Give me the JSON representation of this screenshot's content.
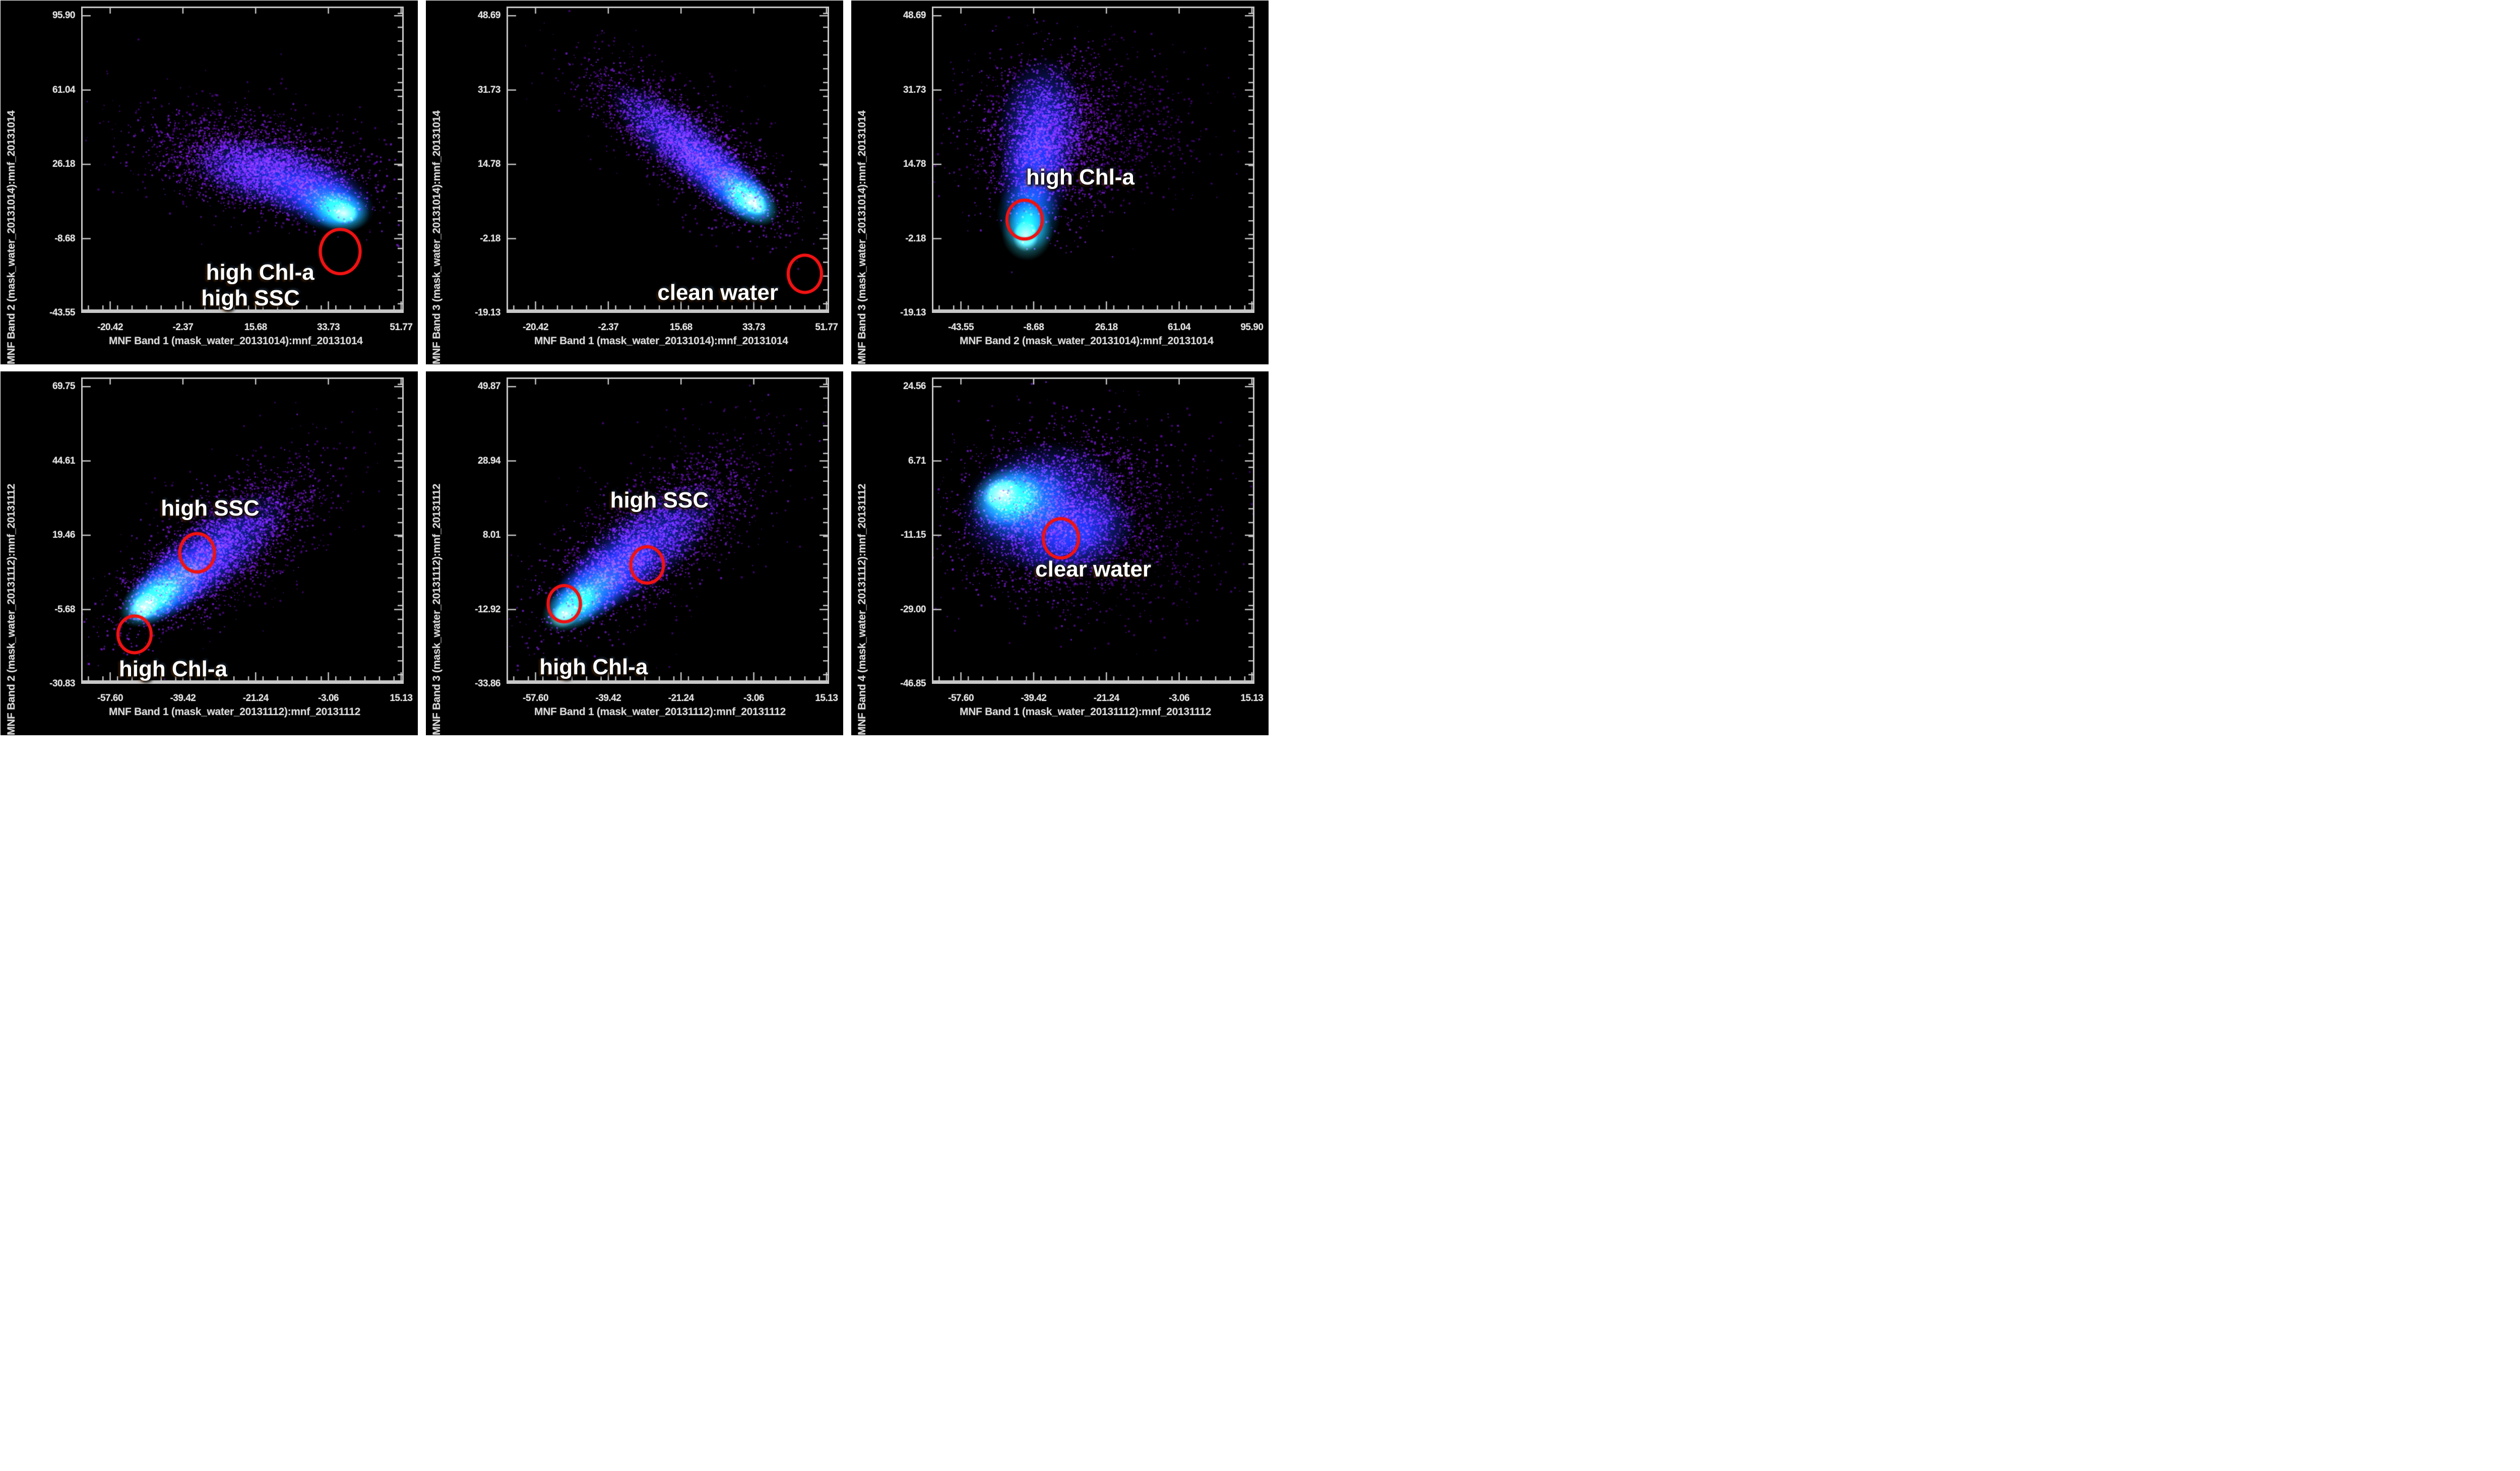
{
  "figure": {
    "description": "Six ENVI MNF-band 2D density scatter plots (2 rows x 3 columns) for water masks of two dates, with red circled regions labeling water types",
    "background": "#ffffff",
    "panel_background": "#000000"
  },
  "colors": {
    "frame": "#c8c8c8",
    "tick_label": "#e2e2e2",
    "axis_title": "#d9d9d9",
    "annotation_text": "#ffffff",
    "highlight_circle": "#ef1212",
    "density_palette": {
      "outer_speckle": "#6e0abe",
      "speckle": "#8c23f5",
      "glow_blue": "#2338ff",
      "glow_mid": "#0091ff",
      "glow_bright": "#37ebff",
      "glow_core": "#b9ffeb"
    }
  },
  "chart_data": [
    {
      "id": "top-left",
      "type": "scatter",
      "style": "2d-density",
      "xlabel": "MNF Band 1 (mask_water_20131014):mnf_20131014",
      "ylabel": "MNF Band 2 (mask_water_20131014):mnf_20131014",
      "x_ticks": [
        "-20.42",
        "-2.37",
        "15.68",
        "33.73",
        "51.77"
      ],
      "y_ticks": [
        "95.90",
        "61.04",
        "26.18",
        "-8.68",
        "-43.55"
      ],
      "x_range": [
        -27.6,
        52.4
      ],
      "y_range": [
        -43.5,
        99.5
      ],
      "grid": false,
      "density_peak": {
        "x": 38,
        "y": 3
      },
      "annotations": [
        {
          "label": "high Chl-a",
          "fx": 0.555,
          "fy": 0.868,
          "x": 17,
          "y": -25
        },
        {
          "label": "high SSC",
          "fx": 0.525,
          "fy": 0.952,
          "x": 14,
          "y": -37
        }
      ],
      "circled_regions": [
        {
          "fx": 0.803,
          "fy": 0.8,
          "r": 0.057,
          "x": 37,
          "y": -15
        }
      ],
      "clusters": [
        {
          "k": "sp",
          "tone": "outer",
          "c": [
            0.5,
            0.47
          ],
          "s": [
            0.4,
            0.2
          ],
          "rot": 12,
          "n": 700,
          "px": 3
        },
        {
          "k": "sp",
          "tone": "main",
          "c": [
            0.55,
            0.52
          ],
          "s": [
            0.3,
            0.13
          ],
          "rot": 12,
          "n": 2400,
          "px": 3
        },
        {
          "k": "gl",
          "tone": "blue",
          "c": [
            0.6,
            0.55
          ],
          "s": [
            0.27,
            0.115
          ],
          "rot": 12
        },
        {
          "k": "gl",
          "tone": "blue",
          "c": [
            0.74,
            0.62
          ],
          "s": [
            0.17,
            0.1
          ],
          "rot": 8
        },
        {
          "k": "gl",
          "tone": "mid",
          "c": [
            0.785,
            0.655
          ],
          "s": [
            0.125,
            0.085
          ],
          "rot": 8
        },
        {
          "k": "gl",
          "tone": "bright",
          "c": [
            0.805,
            0.67
          ],
          "s": [
            0.09,
            0.065
          ],
          "rot": 8
        },
        {
          "k": "gl",
          "tone": "core",
          "c": [
            0.815,
            0.675
          ],
          "s": [
            0.045,
            0.035
          ],
          "rot": 8
        },
        {
          "k": "sp",
          "tone": "top",
          "c": [
            0.58,
            0.53
          ],
          "s": [
            0.3,
            0.13
          ],
          "rot": 12,
          "n": 900,
          "px": 3
        }
      ]
    },
    {
      "id": "top-middle",
      "type": "scatter",
      "style": "2d-density",
      "xlabel": "MNF Band 1 (mask_water_20131014):mnf_20131014",
      "ylabel": "MNF Band 3 (mask_water_20131014):mnf_20131014",
      "x_ticks": [
        "-20.42",
        "-2.37",
        "15.68",
        "33.73",
        "51.77"
      ],
      "y_ticks": [
        "48.69",
        "31.73",
        "14.78",
        "-2.18",
        "-19.13"
      ],
      "x_range": [
        -27.6,
        52.4
      ],
      "y_range": [
        -19.1,
        50.4
      ],
      "grid": false,
      "density_peak": {
        "x": 34,
        "y": 6
      },
      "annotations": [
        {
          "label": "clean water",
          "fx": 0.655,
          "fy": 0.935,
          "x": 25,
          "y": -15
        }
      ],
      "circled_regions": [
        {
          "fx": 0.925,
          "fy": 0.872,
          "r": 0.047,
          "x": 46,
          "y": -10
        }
      ],
      "clusters": [
        {
          "k": "sp",
          "tone": "outer",
          "c": [
            0.52,
            0.4
          ],
          "s": [
            0.42,
            0.18
          ],
          "rot": 38,
          "n": 700,
          "px": 3
        },
        {
          "k": "sp",
          "tone": "main",
          "c": [
            0.56,
            0.45
          ],
          "s": [
            0.32,
            0.11
          ],
          "rot": 38,
          "n": 2200,
          "px": 3
        },
        {
          "k": "gl",
          "tone": "blue",
          "c": [
            0.56,
            0.46
          ],
          "s": [
            0.3,
            0.1
          ],
          "rot": 38
        },
        {
          "k": "gl",
          "tone": "blue",
          "c": [
            0.68,
            0.57
          ],
          "s": [
            0.18,
            0.09
          ],
          "rot": 37
        },
        {
          "k": "gl",
          "tone": "mid",
          "c": [
            0.73,
            0.615
          ],
          "s": [
            0.13,
            0.08
          ],
          "rot": 36
        },
        {
          "k": "gl",
          "tone": "bright",
          "c": [
            0.755,
            0.635
          ],
          "s": [
            0.1,
            0.065
          ],
          "rot": 36
        },
        {
          "k": "gl",
          "tone": "core",
          "c": [
            0.765,
            0.64
          ],
          "s": [
            0.05,
            0.035
          ],
          "rot": 36
        },
        {
          "k": "sp",
          "tone": "top",
          "c": [
            0.58,
            0.48
          ],
          "s": [
            0.33,
            0.12
          ],
          "rot": 38,
          "n": 800,
          "px": 3
        }
      ]
    },
    {
      "id": "top-right",
      "type": "scatter",
      "style": "2d-density",
      "xlabel": "MNF Band 2 (mask_water_20131014):mnf_20131014",
      "ylabel": "MNF Band 3 (mask_water_20131014):mnf_20131014",
      "x_ticks": [
        "-43.55",
        "-8.68",
        "26.18",
        "61.04",
        "95.90"
      ],
      "y_ticks": [
        "48.69",
        "31.73",
        "14.78",
        "-2.18",
        "-19.13"
      ],
      "x_range": [
        -57.5,
        97.0
      ],
      "y_range": [
        -19.1,
        50.4
      ],
      "grid": false,
      "density_peak": {
        "x": -13,
        "y": -2
      },
      "annotations": [
        {
          "label": "high Chl-a",
          "fx": 0.46,
          "fy": 0.558,
          "x": 14,
          "y": 12
        }
      ],
      "circled_regions": [
        {
          "fx": 0.287,
          "fy": 0.695,
          "r": 0.05,
          "x": -13,
          "y": 2
        }
      ],
      "clusters": [
        {
          "k": "sp",
          "tone": "outer",
          "c": [
            0.4,
            0.38
          ],
          "s": [
            0.33,
            0.26
          ],
          "rot": -5,
          "n": 900,
          "px": 3
        },
        {
          "k": "sp",
          "tone": "main",
          "c": [
            0.36,
            0.42
          ],
          "s": [
            0.2,
            0.24
          ],
          "rot": 3,
          "n": 2000,
          "px": 3
        },
        {
          "k": "sp",
          "tone": "outer",
          "c": [
            0.62,
            0.4
          ],
          "s": [
            0.28,
            0.22
          ],
          "rot": 0,
          "n": 350,
          "px": 3
        },
        {
          "k": "gl",
          "tone": "blue",
          "c": [
            0.34,
            0.4
          ],
          "s": [
            0.14,
            0.24
          ],
          "rot": 4
        },
        {
          "k": "gl",
          "tone": "blue",
          "c": [
            0.315,
            0.56
          ],
          "s": [
            0.115,
            0.17
          ],
          "rot": 2
        },
        {
          "k": "gl",
          "tone": "mid",
          "c": [
            0.3,
            0.68
          ],
          "s": [
            0.1,
            0.12
          ],
          "rot": 0
        },
        {
          "k": "gl",
          "tone": "bright",
          "c": [
            0.295,
            0.735
          ],
          "s": [
            0.08,
            0.095
          ],
          "rot": 0
        },
        {
          "k": "gl",
          "tone": "core",
          "c": [
            0.29,
            0.75
          ],
          "s": [
            0.04,
            0.05
          ],
          "rot": 0
        },
        {
          "k": "sp",
          "tone": "top",
          "c": [
            0.36,
            0.44
          ],
          "s": [
            0.19,
            0.24
          ],
          "rot": 3,
          "n": 700,
          "px": 3
        }
      ]
    },
    {
      "id": "bottom-left",
      "type": "scatter",
      "style": "2d-density",
      "xlabel": "MNF Band 1 (mask_water_20131112):mnf_20131112",
      "ylabel": "MNF Band 2 (mask_water_20131112):mnf_20131112",
      "x_ticks": [
        "-57.60",
        "-39.42",
        "-21.24",
        "-3.06",
        "15.13"
      ],
      "y_ticks": [
        "69.75",
        "44.61",
        "19.46",
        "-5.68",
        "-30.83"
      ],
      "x_range": [
        -64.9,
        15.7
      ],
      "y_range": [
        -30.9,
        72.3
      ],
      "grid": false,
      "density_peak": {
        "x": -49,
        "y": -5
      },
      "annotations": [
        {
          "label": "high SSC",
          "fx": 0.4,
          "fy": 0.428,
          "x": -33,
          "y": 28
        },
        {
          "label": "high Chl-a",
          "fx": 0.285,
          "fy": 0.952,
          "x": -42,
          "y": -26
        }
      ],
      "circled_regions": [
        {
          "fx": 0.36,
          "fy": 0.572,
          "r": 0.049,
          "x": -36,
          "y": 13
        },
        {
          "fx": 0.166,
          "fy": 0.838,
          "r": 0.047,
          "x": -52,
          "y": -14
        }
      ],
      "clusters": [
        {
          "k": "sp",
          "tone": "outer",
          "c": [
            0.46,
            0.53
          ],
          "s": [
            0.44,
            0.21
          ],
          "rot": -37,
          "n": 800,
          "px": 3
        },
        {
          "k": "sp",
          "tone": "main",
          "c": [
            0.41,
            0.57
          ],
          "s": [
            0.33,
            0.135
          ],
          "rot": -37,
          "n": 2300,
          "px": 3
        },
        {
          "k": "gl",
          "tone": "blue",
          "c": [
            0.4,
            0.58
          ],
          "s": [
            0.3,
            0.12
          ],
          "rot": -37
        },
        {
          "k": "gl",
          "tone": "blue",
          "c": [
            0.3,
            0.66
          ],
          "s": [
            0.2,
            0.1
          ],
          "rot": -36
        },
        {
          "k": "gl",
          "tone": "mid",
          "c": [
            0.255,
            0.7
          ],
          "s": [
            0.15,
            0.09
          ],
          "rot": -34
        },
        {
          "k": "gl",
          "tone": "bright",
          "c": [
            0.215,
            0.73
          ],
          "s": [
            0.11,
            0.07
          ],
          "rot": -33
        },
        {
          "k": "gl",
          "tone": "core",
          "c": [
            0.195,
            0.75
          ],
          "s": [
            0.055,
            0.042
          ],
          "rot": -33
        },
        {
          "k": "sp",
          "tone": "top",
          "c": [
            0.43,
            0.555
          ],
          "s": [
            0.34,
            0.145
          ],
          "rot": -37,
          "n": 800,
          "px": 3
        }
      ]
    },
    {
      "id": "bottom-middle",
      "type": "scatter",
      "style": "2d-density",
      "xlabel": "MNF Band 1 (mask_water_20131112):mnf_20131112",
      "ylabel": "MNF Band 3 (mask_water_20131112):mnf_20131112",
      "x_ticks": [
        "-57.60",
        "-39.42",
        "-21.24",
        "-3.06",
        "15.13"
      ],
      "y_ticks": [
        "49.87",
        "28.94",
        "8.01",
        "-12.92",
        "-33.86"
      ],
      "x_range": [
        -64.9,
        15.7
      ],
      "y_range": [
        -33.9,
        52.0
      ],
      "grid": false,
      "density_peak": {
        "x": -50,
        "y": -15
      },
      "annotations": [
        {
          "label": "high SSC",
          "fx": 0.474,
          "fy": 0.402,
          "x": -27,
          "y": 18
        },
        {
          "label": "high Chl-a",
          "fx": 0.27,
          "fy": 0.945,
          "x": -43,
          "y": -29
        }
      ],
      "circled_regions": [
        {
          "fx": 0.436,
          "fy": 0.612,
          "r": 0.046,
          "x": -30,
          "y": 0
        },
        {
          "fx": 0.179,
          "fy": 0.739,
          "r": 0.046,
          "x": -50,
          "y": -12
        }
      ],
      "clusters": [
        {
          "k": "sp",
          "tone": "outer",
          "c": [
            0.5,
            0.46
          ],
          "s": [
            0.46,
            0.23
          ],
          "rot": -37,
          "n": 800,
          "px": 3
        },
        {
          "k": "sp",
          "tone": "main",
          "c": [
            0.43,
            0.545
          ],
          "s": [
            0.34,
            0.145
          ],
          "rot": -37,
          "n": 2200,
          "px": 3
        },
        {
          "k": "gl",
          "tone": "blue",
          "c": [
            0.41,
            0.565
          ],
          "s": [
            0.31,
            0.13
          ],
          "rot": -37
        },
        {
          "k": "gl",
          "tone": "blue",
          "c": [
            0.3,
            0.66
          ],
          "s": [
            0.2,
            0.105
          ],
          "rot": -35
        },
        {
          "k": "gl",
          "tone": "mid",
          "c": [
            0.245,
            0.715
          ],
          "s": [
            0.145,
            0.09
          ],
          "rot": -32
        },
        {
          "k": "gl",
          "tone": "bright",
          "c": [
            0.205,
            0.75
          ],
          "s": [
            0.105,
            0.07
          ],
          "rot": -30
        },
        {
          "k": "gl",
          "tone": "core",
          "c": [
            0.18,
            0.775
          ],
          "s": [
            0.05,
            0.04
          ],
          "rot": -30
        },
        {
          "k": "sp",
          "tone": "top",
          "c": [
            0.46,
            0.52
          ],
          "s": [
            0.36,
            0.155
          ],
          "rot": -37,
          "n": 800,
          "px": 3
        }
      ]
    },
    {
      "id": "bottom-right",
      "type": "scatter",
      "style": "2d-density",
      "xlabel": "MNF Band 1 (mask_water_20131112):mnf_20131112",
      "ylabel": "MNF Band 4 (mask_water_20131112):mnf_20131112",
      "x_ticks": [
        "-57.60",
        "-39.42",
        "-21.24",
        "-3.06",
        "15.13"
      ],
      "y_ticks": [
        "24.56",
        "6.71",
        "-11.15",
        "-29.00",
        "-46.85"
      ],
      "x_range": [
        -64.9,
        15.7
      ],
      "y_range": [
        -46.9,
        26.4
      ],
      "grid": false,
      "density_peak": {
        "x": -48,
        "y": -2
      },
      "annotations": [
        {
          "label": "clear water",
          "fx": 0.5,
          "fy": 0.627,
          "x": -25,
          "y": -20
        }
      ],
      "circled_regions": [
        {
          "fx": 0.4,
          "fy": 0.525,
          "r": 0.05,
          "x": -33,
          "y": -12
        }
      ],
      "clusters": [
        {
          "k": "sp",
          "tone": "outer",
          "c": [
            0.45,
            0.45
          ],
          "s": [
            0.42,
            0.31
          ],
          "rot": -12,
          "n": 900,
          "px": 3
        },
        {
          "k": "sp",
          "tone": "main",
          "c": [
            0.38,
            0.43
          ],
          "s": [
            0.28,
            0.24
          ],
          "rot": -14,
          "n": 2200,
          "px": 3
        },
        {
          "k": "sp",
          "tone": "outer",
          "c": [
            0.62,
            0.58
          ],
          "s": [
            0.3,
            0.22
          ],
          "rot": -15,
          "n": 350,
          "px": 3
        },
        {
          "k": "gl",
          "tone": "blue",
          "c": [
            0.34,
            0.42
          ],
          "s": [
            0.26,
            0.21
          ],
          "rot": -15
        },
        {
          "k": "gl",
          "tone": "blue",
          "c": [
            0.45,
            0.52
          ],
          "s": [
            0.2,
            0.13
          ],
          "rot": -22
        },
        {
          "k": "gl",
          "tone": "mid",
          "c": [
            0.275,
            0.405
          ],
          "s": [
            0.165,
            0.135
          ],
          "rot": -15
        },
        {
          "k": "gl",
          "tone": "bright",
          "c": [
            0.235,
            0.39
          ],
          "s": [
            0.115,
            0.095
          ],
          "rot": -15
        },
        {
          "k": "gl",
          "tone": "core",
          "c": [
            0.215,
            0.38
          ],
          "s": [
            0.06,
            0.05
          ],
          "rot": -15
        },
        {
          "k": "sp",
          "tone": "top",
          "c": [
            0.42,
            0.46
          ],
          "s": [
            0.33,
            0.26
          ],
          "rot": -12,
          "n": 800,
          "px": 3
        }
      ]
    }
  ]
}
